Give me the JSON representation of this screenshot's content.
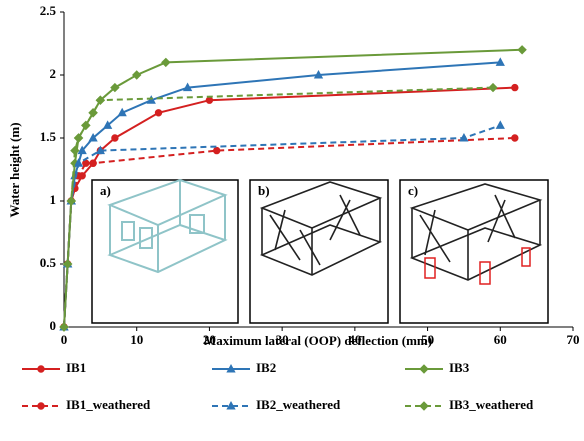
{
  "chart_data": {
    "type": "line",
    "xlabel": "Maximum lateral (OOP)  deflection (mm)",
    "ylabel": "Water height (m)",
    "xlim": [
      0,
      70
    ],
    "xticks": [
      0,
      10,
      20,
      30,
      40,
      50,
      60,
      70
    ],
    "ylim": [
      0,
      2.5
    ],
    "yticks": [
      0,
      0.5,
      1,
      1.5,
      2,
      2.5
    ],
    "grid": false,
    "insets": [
      "a)",
      "b)",
      "c)"
    ],
    "series": [
      {
        "name": "IB1",
        "color": "#d42020",
        "dash": false,
        "marker": "circle",
        "x": [
          0,
          0.5,
          1,
          1.5,
          2.5,
          4,
          5,
          7,
          13,
          20,
          62
        ],
        "values": [
          0,
          0.5,
          1,
          1.1,
          1.2,
          1.3,
          1.4,
          1.5,
          1.7,
          1.8,
          1.9
        ]
      },
      {
        "name": "IB2",
        "color": "#2e75b6",
        "dash": false,
        "marker": "triangle",
        "x": [
          0,
          0.5,
          1,
          1.5,
          2.5,
          4,
          6,
          8,
          12,
          17,
          35,
          60
        ],
        "values": [
          0,
          0.5,
          1,
          1.2,
          1.4,
          1.5,
          1.6,
          1.7,
          1.8,
          1.9,
          2,
          2.1
        ]
      },
      {
        "name": "IB3",
        "color": "#6a9a3a",
        "dash": false,
        "marker": "diamond",
        "x": [
          0,
          0.5,
          1,
          1.5,
          2,
          3,
          4,
          5,
          7,
          10,
          14,
          63
        ],
        "values": [
          0,
          0.5,
          1,
          1.3,
          1.5,
          1.6,
          1.7,
          1.8,
          1.9,
          2,
          2.1,
          2.2
        ]
      },
      {
        "name": "IB1_weathered",
        "color": "#d42020",
        "dash": true,
        "marker": "circle",
        "x": [
          0,
          0.5,
          1,
          2,
          3,
          4,
          21,
          62
        ],
        "values": [
          0,
          0.5,
          1,
          1.2,
          1.3,
          1.3,
          1.4,
          1.5
        ]
      },
      {
        "name": "IB2_weathered",
        "color": "#2e75b6",
        "dash": true,
        "marker": "triangle",
        "x": [
          0,
          0.5,
          1,
          2,
          5,
          55,
          60
        ],
        "values": [
          0,
          0.5,
          1,
          1.3,
          1.4,
          1.5,
          1.6
        ]
      },
      {
        "name": "IB3_weathered",
        "color": "#6a9a3a",
        "dash": true,
        "marker": "diamond",
        "x": [
          0,
          0.5,
          1,
          1.5,
          2,
          3,
          4,
          5,
          59
        ],
        "values": [
          0,
          0.5,
          1,
          1.4,
          1.5,
          1.6,
          1.7,
          1.8,
          1.9
        ]
      }
    ]
  }
}
